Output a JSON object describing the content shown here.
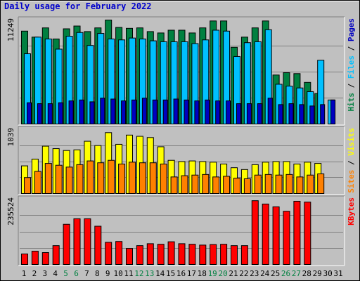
{
  "title": "Daily usage for February 2022",
  "colors": {
    "hits": "#008040",
    "files": "#00c0ff",
    "pages": "#0000c0",
    "visits": "#ffff00",
    "sites": "#ff8000",
    "kbytes": "#ff0000",
    "day": "#000000",
    "weekend": "#008040",
    "sep": "#000000"
  },
  "days": [
    "1",
    "2",
    "3",
    "4",
    "5",
    "6",
    "7",
    "8",
    "9",
    "10",
    "11",
    "12",
    "13",
    "14",
    "15",
    "16",
    "17",
    "18",
    "19",
    "20",
    "21",
    "22",
    "23",
    "24",
    "25",
    "26",
    "27",
    "28",
    "29",
    "30",
    "31"
  ],
  "weekend_days": [
    5,
    6,
    12,
    13,
    19,
    20,
    26,
    27
  ],
  "chart_data": [
    {
      "type": "bar",
      "ylabel_max": "11249",
      "right_label": [
        "Hits",
        "Files",
        "Pages"
      ],
      "ylim": [
        0,
        11249
      ],
      "series": [
        {
          "name": "Hits",
          "values": [
            10049,
            9400,
            10399,
            9200,
            10299,
            10600,
            10000,
            10399,
            11249,
            10450,
            10350,
            10400,
            10000,
            9850,
            10150,
            10150,
            9850,
            10400,
            11149,
            11149,
            8300,
            9400,
            10400,
            11149,
            5300,
            5550,
            5450,
            4500,
            3300,
            0,
            0
          ]
        },
        {
          "name": "Files",
          "values": [
            7600,
            9400,
            9200,
            8100,
            9500,
            9900,
            8500,
            9800,
            9200,
            9100,
            9300,
            9200,
            9000,
            8900,
            8900,
            8900,
            8700,
            9100,
            10150,
            10050,
            7300,
            8800,
            8900,
            10200,
            4300,
            4100,
            3900,
            3500,
            6900,
            2600,
            0
          ]
        },
        {
          "name": "Pages",
          "values": [
            2300,
            2200,
            2200,
            2300,
            2500,
            2600,
            2400,
            2800,
            2700,
            2500,
            2600,
            2800,
            2600,
            2600,
            2700,
            2600,
            2500,
            2600,
            2500,
            2500,
            2200,
            2200,
            2200,
            2800,
            2100,
            2200,
            2100,
            1950,
            2100,
            2600,
            0
          ]
        }
      ]
    },
    {
      "type": "bar",
      "ylabel_max": "1039",
      "right_label": [
        "Sites",
        "Visits"
      ],
      "ylim": [
        0,
        1039
      ],
      "series": [
        {
          "name": "Visits",
          "values": [
            450,
            560,
            770,
            730,
            700,
            710,
            850,
            780,
            990,
            800,
            950,
            930,
            910,
            760,
            540,
            520,
            530,
            520,
            510,
            480,
            420,
            390,
            470,
            510,
            520,
            520,
            480,
            510,
            490,
            0,
            0
          ]
        },
        {
          "name": "Sites",
          "values": [
            260,
            360,
            490,
            460,
            430,
            470,
            530,
            500,
            540,
            480,
            510,
            500,
            500,
            480,
            270,
            290,
            300,
            310,
            270,
            280,
            250,
            240,
            300,
            310,
            300,
            310,
            270,
            300,
            320,
            0,
            0
          ]
        }
      ]
    },
    {
      "type": "bar",
      "ylabel_max": "235524",
      "right_label": [
        "KBytes"
      ],
      "ylim": [
        0,
        235524
      ],
      "series": [
        {
          "name": "KBytes",
          "values": [
            38000,
            48000,
            43000,
            68000,
            145000,
            165000,
            165000,
            138000,
            80000,
            83000,
            58000,
            68000,
            75000,
            73000,
            82000,
            75000,
            73000,
            70000,
            72000,
            73000,
            68000,
            68000,
            230000,
            218000,
            208000,
            192000,
            228000,
            225000,
            0,
            0,
            0
          ]
        }
      ]
    }
  ]
}
